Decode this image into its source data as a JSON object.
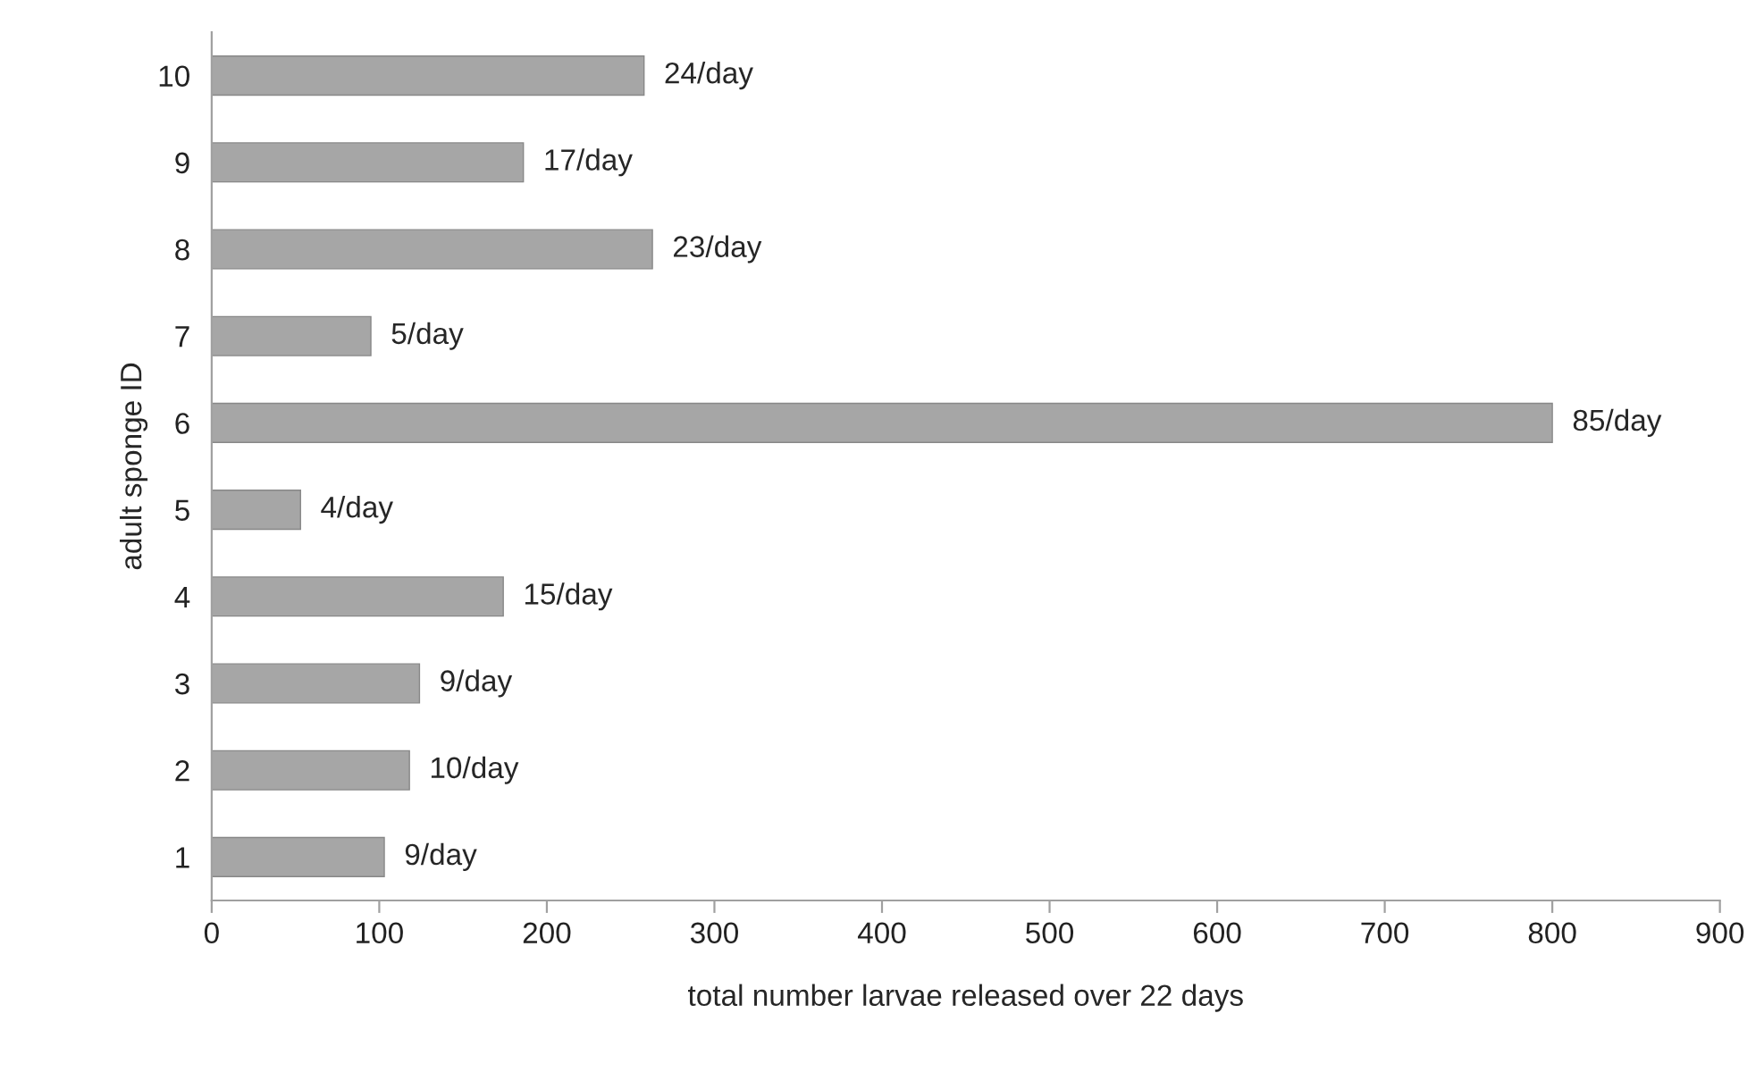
{
  "chart_data": {
    "type": "bar",
    "orientation": "horizontal",
    "xlabel": "total number larvae released over 22 days",
    "ylabel": "adult sponge ID",
    "categories": [
      "10",
      "9",
      "8",
      "7",
      "6",
      "5",
      "4",
      "3",
      "2",
      "1"
    ],
    "values": [
      258,
      186,
      263,
      95,
      800,
      53,
      174,
      124,
      118,
      103
    ],
    "annotations": [
      {
        "text": "24/day",
        "x": 258,
        "y": "10"
      },
      {
        "text": "17/day",
        "x": 186,
        "y": "9"
      },
      {
        "text": "23/day",
        "x": 263,
        "y": "8"
      },
      {
        "text": "5/day",
        "x": 95,
        "y": "7"
      },
      {
        "text": "85/day",
        "x": 800,
        "y": "6"
      },
      {
        "text": "4/day",
        "x": 53,
        "y": "5"
      },
      {
        "text": "15/day",
        "x": 174,
        "y": "4"
      },
      {
        "text": "9/day",
        "x": 124,
        "y": "3"
      },
      {
        "text": "10/day",
        "x": 118,
        "y": "2"
      },
      {
        "text": "9/day",
        "x": 103,
        "y": "1"
      }
    ],
    "color": "#a6a6a6",
    "xlim": [
      0,
      900
    ],
    "xticks": [
      0,
      100,
      200,
      300,
      400,
      500,
      600,
      700,
      800,
      900
    ],
    "grid": false,
    "legend": false
  }
}
